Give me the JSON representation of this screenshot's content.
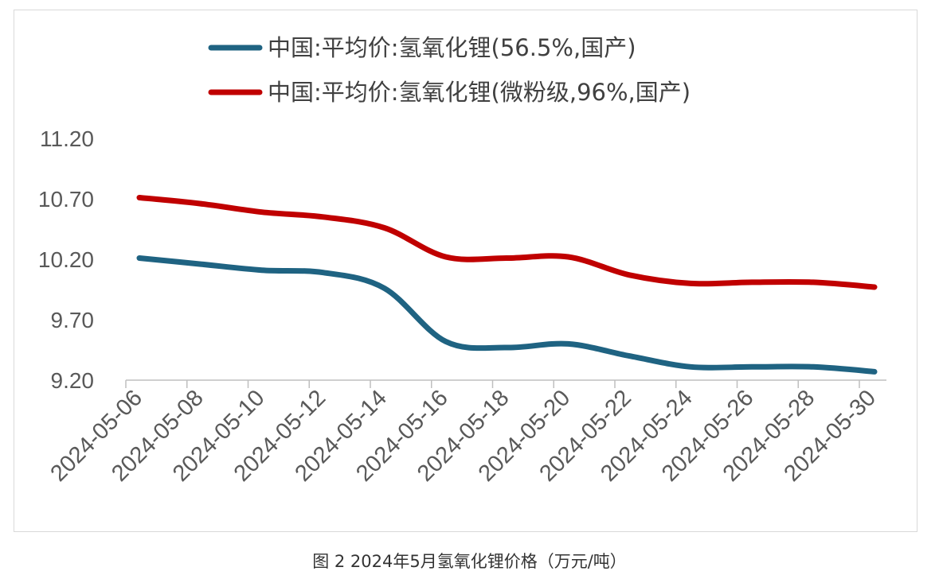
{
  "chart_data": {
    "type": "line",
    "title": "",
    "xlabel": "",
    "ylabel": "",
    "x": [
      "2024-05-06",
      "2024-05-08",
      "2024-05-10",
      "2024-05-12",
      "2024-05-14",
      "2024-05-16",
      "2024-05-18",
      "2024-05-20",
      "2024-05-22",
      "2024-05-24",
      "2024-05-26",
      "2024-05-28",
      "2024-05-30"
    ],
    "xticks": [
      "2024-05-06",
      "2024-05-08",
      "2024-05-10",
      "2024-05-12",
      "2024-05-14",
      "2024-05-16",
      "2024-05-18",
      "2024-05-20",
      "2024-05-22",
      "2024-05-24",
      "2024-05-26",
      "2024-05-28",
      "2024-05-30"
    ],
    "yticks": [
      "9.20",
      "9.70",
      "10.20",
      "10.70",
      "11.20"
    ],
    "ylim": [
      9.2,
      11.2
    ],
    "grid": false,
    "legend_position": "top",
    "series": [
      {
        "name": "中国:平均价:氢氧化锂(56.5%,国产)",
        "color": "#1f6382",
        "values": [
          10.21,
          10.16,
          10.11,
          10.09,
          9.96,
          9.52,
          9.47,
          9.5,
          9.4,
          9.31,
          9.31,
          9.31,
          9.27
        ]
      },
      {
        "name": "中国:平均价:氢氧化锂(微粉级,96%,国产)",
        "color": "#c00000",
        "values": [
          10.71,
          10.66,
          10.59,
          10.55,
          10.46,
          10.22,
          10.21,
          10.22,
          10.07,
          10.0,
          10.01,
          10.01,
          9.97
        ]
      }
    ]
  },
  "caption": "图 2 2024年5月氢氧化锂价格（万元/吨）"
}
